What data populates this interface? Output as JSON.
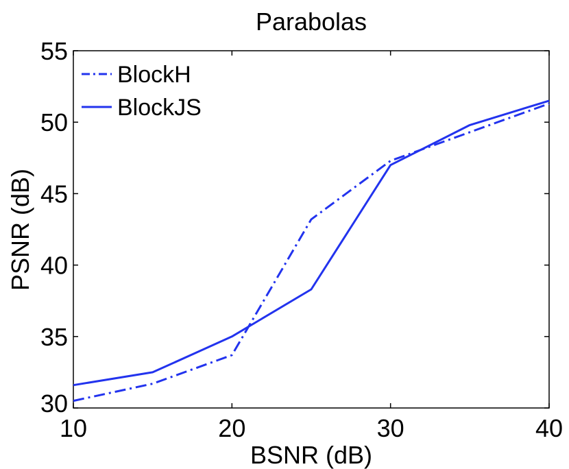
{
  "chart_data": {
    "type": "line",
    "title": "Parabolas",
    "xlabel": "BSNR (dB)",
    "ylabel": "PSNR (dB)",
    "xlim": [
      10,
      40
    ],
    "ylim": [
      30,
      55
    ],
    "xticks": [
      10,
      20,
      30,
      40
    ],
    "yticks": [
      30,
      35,
      40,
      45,
      50,
      55
    ],
    "grid": false,
    "legend_position": "top-left",
    "x": [
      10,
      15,
      20,
      25,
      30,
      35,
      40
    ],
    "series": [
      {
        "name": "BlockH",
        "style": "dash-dot",
        "color": "#2233ee",
        "values": [
          30.5,
          31.7,
          33.7,
          43.2,
          47.3,
          49.3,
          51.3
        ]
      },
      {
        "name": "BlockJS",
        "style": "solid",
        "color": "#2233ee",
        "values": [
          31.6,
          32.5,
          35.0,
          38.3,
          47.0,
          49.8,
          51.5
        ]
      }
    ]
  }
}
